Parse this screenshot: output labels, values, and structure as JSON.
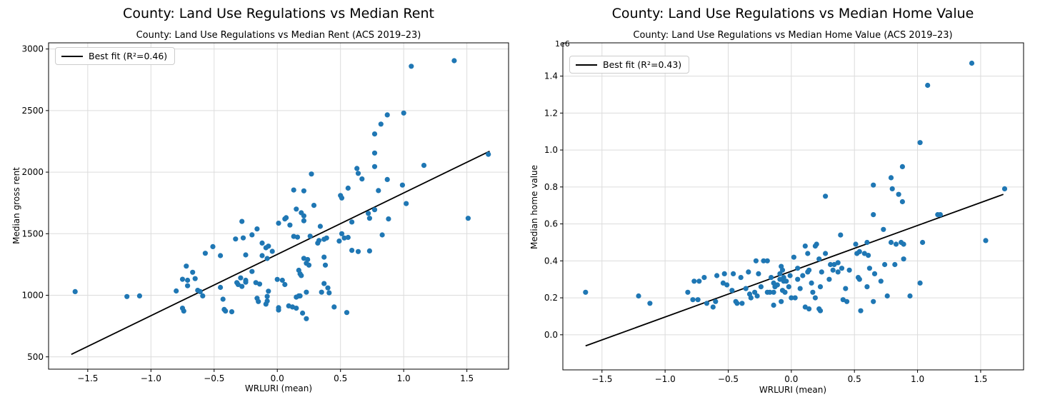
{
  "page": {
    "background": "#ffffff"
  },
  "chart_data": [
    {
      "type": "scatter",
      "suptitle": "County: Land Use Regulations vs Median Rent",
      "title": "County: Land Use Regulations vs Median Rent (ACS 2019–23)",
      "xlabel": "WRLURI (mean)",
      "ylabel": "Median gross rent",
      "legend_label": "Best fit (R²=0.46)",
      "legend_position": "upper left",
      "r_squared": 0.46,
      "offset_text": "",
      "grid": true,
      "marker_color": "#1f77b4",
      "line_color": "#000000",
      "grid_color": "#dcdcdc",
      "xlim": [
        -1.81,
        1.83
      ],
      "ylim": [
        400,
        3050
      ],
      "x_ticks": [
        -1.5,
        -1.0,
        -0.5,
        0.0,
        0.5,
        1.0,
        1.5
      ],
      "x_tick_labels": [
        "−1.5",
        "−1.0",
        "−0.5",
        "0.0",
        "0.5",
        "1.0",
        "1.5"
      ],
      "y_ticks": [
        500,
        1000,
        1500,
        2000,
        2500,
        3000
      ],
      "y_tick_labels": [
        "500",
        "1000",
        "1500",
        "2000",
        "2500",
        "3000"
      ],
      "best_fit": {
        "x": [
          -1.63,
          1.68
        ],
        "y": [
          520,
          2170
        ]
      },
      "points": [
        [
          -1.6,
          1030
        ],
        [
          -1.19,
          990
        ],
        [
          -1.09,
          995
        ],
        [
          -0.8,
          1035
        ],
        [
          -0.75,
          1130
        ],
        [
          -0.75,
          895
        ],
        [
          -0.74,
          872
        ],
        [
          -0.72,
          1237
        ],
        [
          -0.71,
          1122
        ],
        [
          -0.71,
          1077
        ],
        [
          -0.67,
          1187
        ],
        [
          -0.65,
          1135
        ],
        [
          -0.63,
          1040
        ],
        [
          -0.61,
          1030
        ],
        [
          -0.59,
          995
        ],
        [
          -0.57,
          1341
        ],
        [
          -0.51,
          1395
        ],
        [
          -0.45,
          1322
        ],
        [
          -0.45,
          1064
        ],
        [
          -0.43,
          968
        ],
        [
          -0.42,
          885
        ],
        [
          -0.41,
          872
        ],
        [
          -0.36,
          866
        ],
        [
          -0.33,
          1457
        ],
        [
          -0.32,
          1103
        ],
        [
          -0.31,
          1087
        ],
        [
          -0.29,
          1141
        ],
        [
          -0.28,
          1600
        ],
        [
          -0.28,
          1072
        ],
        [
          -0.27,
          1466
        ],
        [
          -0.25,
          1328
        ],
        [
          -0.25,
          1122
        ],
        [
          -0.25,
          1106
        ],
        [
          -0.2,
          1491
        ],
        [
          -0.2,
          1193
        ],
        [
          -0.17,
          1103
        ],
        [
          -0.16,
          1539
        ],
        [
          -0.16,
          976
        ],
        [
          -0.15,
          949
        ],
        [
          -0.14,
          1091
        ],
        [
          -0.12,
          1424
        ],
        [
          -0.12,
          1322
        ],
        [
          -0.09,
          1386
        ],
        [
          -0.09,
          928
        ],
        [
          -0.08,
          1299
        ],
        [
          -0.08,
          991
        ],
        [
          -0.08,
          953
        ],
        [
          -0.07,
          1399
        ],
        [
          -0.07,
          1033
        ],
        [
          -0.04,
          1357
        ],
        [
          0.0,
          1129
        ],
        [
          0.01,
          1585
        ],
        [
          0.01,
          899
        ],
        [
          0.01,
          880
        ],
        [
          0.04,
          1122
        ],
        [
          0.06,
          1620
        ],
        [
          0.06,
          1087
        ],
        [
          0.07,
          1630
        ],
        [
          0.09,
          914
        ],
        [
          0.1,
          1570
        ],
        [
          0.12,
          905
        ],
        [
          0.13,
          1855
        ],
        [
          0.13,
          1478
        ],
        [
          0.15,
          1700
        ],
        [
          0.15,
          985
        ],
        [
          0.15,
          895
        ],
        [
          0.16,
          1472
        ],
        [
          0.17,
          1203
        ],
        [
          0.17,
          995
        ],
        [
          0.18,
          1174
        ],
        [
          0.18,
          995
        ],
        [
          0.19,
          1670
        ],
        [
          0.19,
          1160
        ],
        [
          0.2,
          855
        ],
        [
          0.21,
          1848
        ],
        [
          0.21,
          1645
        ],
        [
          0.21,
          1605
        ],
        [
          0.21,
          1300
        ],
        [
          0.23,
          1260
        ],
        [
          0.23,
          1025
        ],
        [
          0.23,
          810
        ],
        [
          0.24,
          1290
        ],
        [
          0.25,
          1245
        ],
        [
          0.26,
          1480
        ],
        [
          0.27,
          1985
        ],
        [
          0.29,
          1730
        ],
        [
          0.32,
          1424
        ],
        [
          0.33,
          1445
        ],
        [
          0.34,
          1560
        ],
        [
          0.35,
          1025
        ],
        [
          0.37,
          1455
        ],
        [
          0.37,
          1310
        ],
        [
          0.37,
          1095
        ],
        [
          0.38,
          1245
        ],
        [
          0.39,
          1465
        ],
        [
          0.4,
          1060
        ],
        [
          0.41,
          1020
        ],
        [
          0.45,
          905
        ],
        [
          0.49,
          1440
        ],
        [
          0.5,
          1810
        ],
        [
          0.51,
          1790
        ],
        [
          0.51,
          1500
        ],
        [
          0.53,
          1465
        ],
        [
          0.55,
          860
        ],
        [
          0.56,
          1870
        ],
        [
          0.56,
          1470
        ],
        [
          0.59,
          1595
        ],
        [
          0.59,
          1365
        ],
        [
          0.63,
          2030
        ],
        [
          0.64,
          1990
        ],
        [
          0.64,
          1355
        ],
        [
          0.67,
          1945
        ],
        [
          0.72,
          1665
        ],
        [
          0.73,
          1625
        ],
        [
          0.73,
          1360
        ],
        [
          0.77,
          2310
        ],
        [
          0.77,
          2155
        ],
        [
          0.77,
          2045
        ],
        [
          0.77,
          1695
        ],
        [
          0.8,
          1850
        ],
        [
          0.82,
          2390
        ],
        [
          0.83,
          1490
        ],
        [
          0.87,
          2465
        ],
        [
          0.87,
          1940
        ],
        [
          0.88,
          1620
        ],
        [
          0.99,
          1895
        ],
        [
          1.0,
          2480
        ],
        [
          1.02,
          1745
        ],
        [
          1.06,
          2860
        ],
        [
          1.16,
          2055
        ],
        [
          1.4,
          2905
        ],
        [
          1.51,
          1625
        ],
        [
          1.67,
          2145
        ]
      ]
    },
    {
      "type": "scatter",
      "suptitle": "County: Land Use Regulations vs Median Home Value",
      "title": "County: Land Use Regulations vs Median Home Value (ACS 2019–23)",
      "xlabel": "WRLURI (mean)",
      "ylabel": "Median home value",
      "legend_label": "Best fit (R²=0.43)",
      "legend_position": "upper left",
      "r_squared": 0.43,
      "offset_text": "1e6",
      "y_scale": "1e6",
      "grid": true,
      "marker_color": "#1f77b4",
      "line_color": "#000000",
      "grid_color": "#dcdcdc",
      "xlim": [
        -1.81,
        1.84
      ],
      "ylim": [
        -0.19,
        1.58
      ],
      "x_ticks": [
        -1.5,
        -1.0,
        -0.5,
        0.0,
        0.5,
        1.0,
        1.5
      ],
      "x_tick_labels": [
        "−1.5",
        "−1.0",
        "−0.5",
        "0.0",
        "0.5",
        "1.0",
        "1.5"
      ],
      "y_ticks": [
        0.0,
        0.2,
        0.4,
        0.6,
        0.8,
        1.0,
        1.2,
        1.4
      ],
      "y_tick_labels": [
        "0.0",
        "0.2",
        "0.4",
        "0.6",
        "0.8",
        "1.0",
        "1.2",
        "1.4"
      ],
      "best_fit": {
        "x": [
          -1.63,
          1.68
        ],
        "y": [
          -0.06,
          0.76
        ]
      },
      "points": [
        [
          -1.63,
          0.23
        ],
        [
          -1.21,
          0.21
        ],
        [
          -1.12,
          0.17
        ],
        [
          -0.82,
          0.23
        ],
        [
          -0.78,
          0.19
        ],
        [
          -0.77,
          0.29
        ],
        [
          -0.74,
          0.19
        ],
        [
          -0.73,
          0.29
        ],
        [
          -0.69,
          0.31
        ],
        [
          -0.67,
          0.17
        ],
        [
          -0.62,
          0.15
        ],
        [
          -0.6,
          0.18
        ],
        [
          -0.59,
          0.32
        ],
        [
          -0.54,
          0.28
        ],
        [
          -0.53,
          0.33
        ],
        [
          -0.51,
          0.27
        ],
        [
          -0.47,
          0.24
        ],
        [
          -0.46,
          0.33
        ],
        [
          -0.44,
          0.18
        ],
        [
          -0.43,
          0.17
        ],
        [
          -0.4,
          0.31
        ],
        [
          -0.39,
          0.17
        ],
        [
          -0.36,
          0.25
        ],
        [
          -0.34,
          0.34
        ],
        [
          -0.33,
          0.22
        ],
        [
          -0.32,
          0.2
        ],
        [
          -0.29,
          0.23
        ],
        [
          -0.28,
          0.4
        ],
        [
          -0.27,
          0.21
        ],
        [
          -0.26,
          0.33
        ],
        [
          -0.24,
          0.26
        ],
        [
          -0.22,
          0.4
        ],
        [
          -0.19,
          0.4
        ],
        [
          -0.19,
          0.23
        ],
        [
          -0.17,
          0.23
        ],
        [
          -0.16,
          0.31
        ],
        [
          -0.14,
          0.28
        ],
        [
          -0.14,
          0.23
        ],
        [
          -0.14,
          0.16
        ],
        [
          -0.13,
          0.26
        ],
        [
          -0.11,
          0.27
        ],
        [
          -0.09,
          0.33
        ],
        [
          -0.09,
          0.3
        ],
        [
          -0.08,
          0.37
        ],
        [
          -0.08,
          0.18
        ],
        [
          -0.07,
          0.35
        ],
        [
          -0.07,
          0.24
        ],
        [
          -0.06,
          0.31
        ],
        [
          -0.06,
          0.29
        ],
        [
          -0.05,
          0.23
        ],
        [
          -0.04,
          0.29
        ],
        [
          -0.02,
          0.26
        ],
        [
          -0.01,
          0.32
        ],
        [
          0.0,
          0.2
        ],
        [
          0.02,
          0.42
        ],
        [
          0.03,
          0.2
        ],
        [
          0.05,
          0.36
        ],
        [
          0.05,
          0.3
        ],
        [
          0.07,
          0.25
        ],
        [
          0.09,
          0.32
        ],
        [
          0.11,
          0.48
        ],
        [
          0.11,
          0.15
        ],
        [
          0.13,
          0.44
        ],
        [
          0.13,
          0.34
        ],
        [
          0.14,
          0.35
        ],
        [
          0.14,
          0.14
        ],
        [
          0.16,
          0.28
        ],
        [
          0.17,
          0.23
        ],
        [
          0.19,
          0.48
        ],
        [
          0.19,
          0.2
        ],
        [
          0.2,
          0.49
        ],
        [
          0.22,
          0.41
        ],
        [
          0.22,
          0.14
        ],
        [
          0.23,
          0.26
        ],
        [
          0.23,
          0.13
        ],
        [
          0.24,
          0.34
        ],
        [
          0.27,
          0.75
        ],
        [
          0.27,
          0.44
        ],
        [
          0.3,
          0.3
        ],
        [
          0.31,
          0.38
        ],
        [
          0.33,
          0.35
        ],
        [
          0.34,
          0.38
        ],
        [
          0.37,
          0.39
        ],
        [
          0.37,
          0.34
        ],
        [
          0.39,
          0.54
        ],
        [
          0.4,
          0.36
        ],
        [
          0.41,
          0.19
        ],
        [
          0.43,
          0.25
        ],
        [
          0.44,
          0.18
        ],
        [
          0.46,
          0.35
        ],
        [
          0.51,
          0.49
        ],
        [
          0.52,
          0.44
        ],
        [
          0.53,
          0.31
        ],
        [
          0.54,
          0.45
        ],
        [
          0.54,
          0.3
        ],
        [
          0.55,
          0.13
        ],
        [
          0.58,
          0.44
        ],
        [
          0.6,
          0.5
        ],
        [
          0.6,
          0.26
        ],
        [
          0.61,
          0.43
        ],
        [
          0.62,
          0.36
        ],
        [
          0.65,
          0.81
        ],
        [
          0.65,
          0.65
        ],
        [
          0.65,
          0.18
        ],
        [
          0.66,
          0.33
        ],
        [
          0.71,
          0.29
        ],
        [
          0.73,
          0.57
        ],
        [
          0.74,
          0.38
        ],
        [
          0.76,
          0.21
        ],
        [
          0.79,
          0.85
        ],
        [
          0.79,
          0.5
        ],
        [
          0.8,
          0.79
        ],
        [
          0.82,
          0.38
        ],
        [
          0.83,
          0.49
        ],
        [
          0.85,
          0.76
        ],
        [
          0.87,
          0.5
        ],
        [
          0.88,
          0.91
        ],
        [
          0.88,
          0.72
        ],
        [
          0.89,
          0.49
        ],
        [
          0.89,
          0.41
        ],
        [
          0.94,
          0.21
        ],
        [
          1.02,
          1.04
        ],
        [
          1.02,
          0.28
        ],
        [
          1.04,
          0.5
        ],
        [
          1.08,
          1.35
        ],
        [
          1.16,
          0.65
        ],
        [
          1.18,
          0.65
        ],
        [
          1.43,
          1.47
        ],
        [
          1.54,
          0.51
        ],
        [
          1.69,
          0.79
        ]
      ]
    }
  ]
}
